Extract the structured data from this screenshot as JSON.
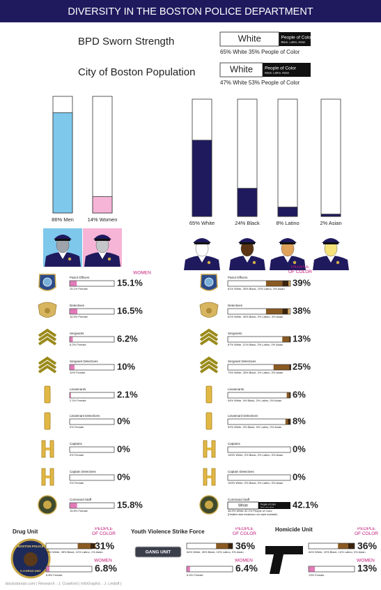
{
  "header": {
    "title": "DIVERSITY IN THE BOSTON POLICE DEPARTMENT"
  },
  "legend": {
    "white": "White",
    "people_of_color": "People of Color",
    "poc_groups": "Black, Latino, Asian"
  },
  "comparisons": [
    {
      "label": "BPD Sworn Strength",
      "white": 65,
      "caption": "65% White 35% People of Color"
    },
    {
      "label": "City of Boston Population",
      "white": 47,
      "caption": "47% White 53% People of Color"
    }
  ],
  "gender": [
    {
      "label": "86% Men",
      "value": 86,
      "color": "#7ec8ec"
    },
    {
      "label": "14% Women",
      "value": 14,
      "color": "#f6b4d6"
    }
  ],
  "race": {
    "color": "#1f1a5e",
    "bars": [
      {
        "label": "65% White",
        "value": 65
      },
      {
        "label": "24% Black",
        "value": 24
      },
      {
        "label": "8% Latino",
        "value": 8
      },
      {
        "label": "2% Asian",
        "value": 2
      }
    ]
  },
  "headings": {
    "women": "WOMEN",
    "people_of_color": "PEOPLE OF COLOR"
  },
  "women_color": "#e27ab8",
  "segment_colors": [
    "#ffffff",
    "#8a5a22",
    "#3b230c",
    "#d9a85a"
  ],
  "ranks": [
    {
      "name": "Patrol Officers",
      "icon": "patch",
      "women": {
        "value": 15.1,
        "label": "15.1%"
      },
      "women_caption": "15.1% Female",
      "poc": {
        "value": 39,
        "label": "39%"
      },
      "breakdown": [
        61,
        26,
        10,
        3
      ],
      "poc_caption": "61% White, 26% Black, 10% Latino, 3% Asian"
    },
    {
      "name": "Detectives",
      "icon": "shield",
      "women": {
        "value": 16.5,
        "label": "16.5%"
      },
      "women_caption": "16.5% Female",
      "poc": {
        "value": 38,
        "label": "38%"
      },
      "breakdown": [
        61,
        26,
        9,
        3
      ],
      "poc_caption": "61% White, 26% Black, 9% Latino, 3% Asian"
    },
    {
      "name": "Sergeants",
      "icon": "chevrons",
      "women": {
        "value": 6.2,
        "label": "6.2%"
      },
      "women_caption": "6.2% Female",
      "poc": {
        "value": 13,
        "label": "13%"
      },
      "breakdown": [
        87,
        11,
        2,
        0
      ],
      "poc_caption": "87% White, 11% Black, 2% Latino, 0% Asian"
    },
    {
      "name": "Sergeant Detectives",
      "icon": "chevrons",
      "women": {
        "value": 10,
        "label": "10%"
      },
      "women_caption": "10% Female",
      "poc": {
        "value": 25,
        "label": "25%"
      },
      "breakdown": [
        73,
        25,
        3,
        0
      ],
      "poc_caption": "73% White, 25% Black, 3% Latino, 0% Asian"
    },
    {
      "name": "Lieutenants",
      "icon": "bar",
      "women": {
        "value": 2.1,
        "label": "2.1%"
      },
      "women_caption": "2.1% Female",
      "poc": {
        "value": 6,
        "label": "6%"
      },
      "breakdown": [
        94,
        4,
        2,
        0
      ],
      "poc_caption": "94% White, 4% Black, 2% Latino, 0% Asian"
    },
    {
      "name": "Lieutenant Detectives",
      "icon": "bar",
      "women": {
        "value": 0,
        "label": "0%"
      },
      "women_caption": "0% Female",
      "poc": {
        "value": 8,
        "label": "8%"
      },
      "breakdown": [
        92,
        4,
        4,
        0
      ],
      "poc_caption": "92% White, 4% Black, 4% Latino, 0% Asian"
    },
    {
      "name": "Captains",
      "icon": "bars",
      "women": {
        "value": 0,
        "label": "0%"
      },
      "women_caption": "0% Female",
      "poc": {
        "value": 0,
        "label": "0%"
      },
      "breakdown": [
        100,
        0,
        0,
        0
      ],
      "poc_caption": "100% White, 0% Black, 0% Latino, 0% Asian"
    },
    {
      "name": "Captain Detectives",
      "icon": "bars",
      "women": {
        "value": 0,
        "label": "0%"
      },
      "women_caption": "0% Female",
      "poc": {
        "value": 0,
        "label": "0%"
      },
      "breakdown": [
        100,
        0,
        0,
        0
      ],
      "poc_caption": "100% White, 0% Black, 0% Latino, 0% Asian"
    },
    {
      "name": "Command Staff",
      "icon": "seal",
      "women": {
        "value": 15.8,
        "label": "15.8%"
      },
      "women_caption": "15.8% Female",
      "poc": {
        "value": 42.1,
        "label": "42.1%"
      },
      "white": 48.9,
      "poc_caption": "48.9% White 42.1% People of Color",
      "note": "(Detailed data breakdown not made available)"
    }
  ],
  "units": [
    {
      "name": "Drug Unit",
      "icon": "k9",
      "poc": {
        "value": 31,
        "label": "31%"
      },
      "breakdown": [
        69,
        28,
        10,
        1
      ],
      "poc_caption": "69% White, 28% Black, 10% Latino, 1% Asian",
      "women": {
        "value": 6.8,
        "label": "6.8%"
      },
      "women_caption": "6.8% Female"
    },
    {
      "name": "Youth Violence Strike Force",
      "icon": "gang",
      "poc": {
        "value": 36,
        "label": "36%"
      },
      "breakdown": [
        64,
        26,
        10,
        0
      ],
      "poc_caption": "64% White, 26% Black, 10% Latino, 0% Asian",
      "women": {
        "value": 6.4,
        "label": "6.4%"
      },
      "women_caption": "6.4% Female"
    },
    {
      "name": "Homicide Unit",
      "icon": "pistol",
      "poc": {
        "value": 36,
        "label": "36%"
      },
      "breakdown": [
        64,
        22,
        14,
        0
      ],
      "poc_caption": "64% White, 22% Black, 14% Latino, 0% Asian",
      "women": {
        "value": 13,
        "label": "13%"
      },
      "women_caption": "13% Female"
    }
  ],
  "k9_text": {
    "top": "BOSTON POLICE",
    "bottom": "K-9 DRUG UNIT"
  },
  "gang_text": "GANG UNIT",
  "footer": "blackstonian.com | Research - J. Crawford | InfoGraphic - J. Leidolf |"
}
